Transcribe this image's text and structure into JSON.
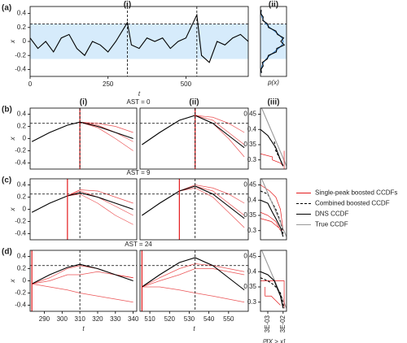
{
  "chart_data": [
    {
      "type": "line",
      "panel_label": "(a)",
      "column_label": "(i)",
      "xlabel": "t",
      "ylabel": "x",
      "xlim": [
        0,
        700
      ],
      "ylim": [
        -0.5,
        0.5
      ],
      "xticks": [
        0,
        250,
        500
      ],
      "yticks": [
        -0.4,
        -0.2,
        0,
        0.2,
        0.4
      ],
      "band": [
        -0.25,
        0.25
      ],
      "threshold": 0.25,
      "band_color": "#d6ebfb",
      "vlines": [
        {
          "value": 312,
          "color": "#000000",
          "dash": true
        },
        {
          "value": 535,
          "color": "#000000",
          "dash": true
        }
      ],
      "x": [
        0,
        25,
        50,
        75,
        100,
        125,
        150,
        175,
        200,
        225,
        250,
        275,
        312,
        325,
        350,
        375,
        400,
        425,
        450,
        475,
        500,
        535,
        550,
        575,
        600,
        625,
        650,
        675,
        700
      ],
      "series": [
        {
          "color": "#000000",
          "values": [
            0.05,
            -0.1,
            0.0,
            -0.15,
            0.05,
            0.1,
            -0.1,
            -0.2,
            0.0,
            -0.05,
            -0.15,
            0.0,
            0.27,
            -0.05,
            -0.1,
            0.05,
            0.0,
            0.05,
            -0.1,
            0.0,
            0.05,
            0.38,
            -0.2,
            -0.3,
            0.0,
            -0.05,
            0.05,
            0.1,
            0.0
          ]
        }
      ]
    },
    {
      "type": "line",
      "column_label": "(ii)",
      "xlabel": "p(x)",
      "xlim": [
        0,
        1.15
      ],
      "ylim": [
        -0.5,
        0.5
      ],
      "band": [
        -0.25,
        0.25
      ],
      "threshold": 0.25,
      "band_color": "#d6ebfb",
      "x": [
        0.011,
        0.03,
        0.066,
        0.135,
        0.25,
        0.41,
        0.61,
        0.8,
        0.95,
        1.0,
        0.95,
        0.8,
        0.61,
        0.41,
        0.25,
        0.135,
        0.066,
        0.03,
        0.011
      ],
      "series": [
        {
          "color": "#3a7fc1",
          "values": [
            -0.45,
            -0.4,
            -0.35,
            -0.3,
            -0.25,
            -0.2,
            -0.15,
            -0.1,
            -0.05,
            0,
            0.05,
            0.1,
            0.15,
            0.2,
            0.25,
            0.3,
            0.35,
            0.4,
            0.45
          ]
        },
        {
          "color": "#000000",
          "x": [
            0.05,
            0.02,
            0.12,
            0.08,
            0.3,
            0.35,
            0.7,
            0.72,
            1.05,
            0.9,
            1.02,
            0.75,
            0.68,
            0.35,
            0.32,
            0.1,
            0.12,
            0.01,
            0.04
          ],
          "values": [
            -0.45,
            -0.4,
            -0.35,
            -0.3,
            -0.25,
            -0.2,
            -0.15,
            -0.1,
            -0.05,
            0,
            0.05,
            0.1,
            0.15,
            0.2,
            0.25,
            0.3,
            0.35,
            0.4,
            0.45
          ]
        }
      ]
    },
    {
      "type": "line",
      "panel_label": "(b)",
      "column_label": "(i)",
      "title": "AST = 0",
      "ylabel": "x",
      "xlim": [
        282,
        342
      ],
      "ylim": [
        -0.5,
        0.5
      ],
      "yticks": [
        -0.4,
        -0.2,
        0,
        0.2,
        0.4
      ],
      "threshold": 0.25,
      "vlines": [
        {
          "value": 310,
          "color": "#e41a1c",
          "dash": false
        },
        {
          "value": 310,
          "color": "#000000",
          "dash": true
        }
      ],
      "x": [
        283,
        293,
        303,
        310,
        320,
        330,
        340
      ],
      "series": [
        {
          "color": "#e41a1c",
          "values": [
            null,
            null,
            null,
            0.27,
            0.22,
            0.1,
            -0.05
          ]
        },
        {
          "color": "#e41a1c",
          "values": [
            null,
            null,
            null,
            0.27,
            0.18,
            0.0,
            -0.2
          ]
        },
        {
          "color": "#e41a1c",
          "values": [
            null,
            null,
            null,
            0.27,
            0.25,
            0.2,
            0.1
          ]
        },
        {
          "color": "#000000",
          "values": [
            -0.05,
            0.1,
            0.22,
            0.27,
            0.2,
            0.1,
            0.0
          ]
        }
      ]
    },
    {
      "type": "line",
      "column_label": "(ii)",
      "xlim": [
        505,
        560
      ],
      "ylim": [
        -0.5,
        0.5
      ],
      "threshold": 0.25,
      "vlines": [
        {
          "value": 533,
          "color": "#e41a1c",
          "dash": false
        },
        {
          "value": 533,
          "color": "#000000",
          "dash": true
        }
      ],
      "x": [
        506,
        515,
        525,
        533,
        542,
        550,
        558
      ],
      "series": [
        {
          "color": "#e41a1c",
          "values": [
            null,
            null,
            null,
            0.38,
            0.3,
            0.1,
            -0.1
          ]
        },
        {
          "color": "#e41a1c",
          "values": [
            null,
            null,
            null,
            0.38,
            0.25,
            0.0,
            -0.3
          ]
        },
        {
          "color": "#e41a1c",
          "values": [
            null,
            null,
            null,
            0.38,
            0.35,
            0.25,
            0.1
          ]
        },
        {
          "color": "#000000",
          "values": [
            -0.1,
            0.1,
            0.3,
            0.38,
            0.25,
            0.05,
            -0.15
          ]
        }
      ]
    },
    {
      "type": "line",
      "column_label": "(iii)",
      "xscale": "log",
      "xlim": [
        0.001,
        0.05
      ],
      "ylim": [
        0.27,
        0.47
      ],
      "yticks": [
        0.3,
        0.35,
        0.4,
        0.45
      ],
      "series": [
        {
          "color": "#999999",
          "x": [
            0.0012,
            0.05
          ],
          "values": [
            0.47,
            0.28
          ]
        },
        {
          "color": "#e41a1c",
          "x": [
            0.001,
            0.006,
            0.006,
            0.02,
            0.03
          ],
          "values": [
            0.32,
            0.31,
            0.3,
            0.29,
            0.28
          ]
        },
        {
          "color": "#e41a1c",
          "x": [
            0.035,
            0.035
          ],
          "values": [
            0.33,
            0.27
          ]
        },
        {
          "color": "#000000",
          "dash": true,
          "x": [
            0.008,
            0.01,
            0.02,
            0.03
          ],
          "values": [
            0.36,
            0.33,
            0.3,
            0.28
          ]
        },
        {
          "color": "#000000",
          "x": [
            0.001,
            0.003,
            0.01,
            0.02,
            0.03
          ],
          "values": [
            0.4,
            0.38,
            0.34,
            0.3,
            0.28
          ]
        }
      ]
    },
    {
      "type": "line",
      "panel_label": "(c)",
      "title": "AST = 9",
      "ylabel": "x",
      "xlim": [
        282,
        342
      ],
      "ylim": [
        -0.5,
        0.5
      ],
      "yticks": [
        -0.4,
        -0.2,
        0,
        0.2,
        0.4
      ],
      "threshold": 0.25,
      "vlines": [
        {
          "value": 303,
          "color": "#e41a1c",
          "dash": false
        },
        {
          "value": 310,
          "color": "#000000",
          "dash": true
        }
      ],
      "x": [
        283,
        293,
        303,
        310,
        320,
        330,
        340
      ],
      "series": [
        {
          "color": "#e41a1c",
          "values": [
            null,
            null,
            0.22,
            0.3,
            0.2,
            0.05,
            -0.1
          ]
        },
        {
          "color": "#e41a1c",
          "values": [
            null,
            null,
            0.22,
            0.25,
            0.1,
            -0.1,
            -0.25
          ]
        },
        {
          "color": "#e41a1c",
          "values": [
            null,
            null,
            0.22,
            0.32,
            0.3,
            0.2,
            0.1
          ]
        },
        {
          "color": "#000000",
          "values": [
            -0.05,
            0.1,
            0.22,
            0.27,
            0.2,
            0.1,
            0.0
          ]
        }
      ]
    },
    {
      "type": "line",
      "xlim": [
        505,
        560
      ],
      "ylim": [
        -0.5,
        0.5
      ],
      "threshold": 0.25,
      "vlines": [
        {
          "value": 525,
          "color": "#e41a1c",
          "dash": false
        },
        {
          "value": 533,
          "color": "#000000",
          "dash": true
        }
      ],
      "x": [
        506,
        515,
        525,
        533,
        542,
        550,
        558
      ],
      "series": [
        {
          "color": "#e41a1c",
          "values": [
            null,
            null,
            0.3,
            0.38,
            0.3,
            0.1,
            -0.1
          ]
        },
        {
          "color": "#e41a1c",
          "values": [
            null,
            null,
            0.3,
            0.35,
            0.2,
            -0.05,
            -0.3
          ]
        },
        {
          "color": "#e41a1c",
          "values": [
            null,
            null,
            0.3,
            0.4,
            0.35,
            0.25,
            0.1
          ]
        },
        {
          "color": "#000000",
          "values": [
            -0.1,
            0.1,
            0.3,
            0.38,
            0.25,
            0.05,
            -0.15
          ]
        }
      ]
    },
    {
      "type": "line",
      "xscale": "log",
      "legend": "right",
      "xlim": [
        0.001,
        0.05
      ],
      "ylim": [
        0.27,
        0.47
      ],
      "yticks": [
        0.3,
        0.35,
        0.4,
        0.45
      ],
      "series": [
        {
          "name": "Single-peak boosted CCDFs",
          "color": "#e41a1c",
          "x": [
            0.001,
            0.004,
            0.01,
            0.02,
            0.03
          ],
          "values": [
            0.45,
            0.43,
            0.41,
            0.37,
            0.3
          ]
        },
        {
          "name": "Combined boosted CCDF",
          "color": "#000000",
          "dash": true,
          "x": [
            0.001,
            0.003,
            0.006,
            0.01,
            0.02,
            0.03
          ],
          "values": [
            0.43,
            0.42,
            0.39,
            0.37,
            0.33,
            0.29
          ]
        },
        {
          "name": "DNS CCDF",
          "color": "#000000",
          "x": [
            0.001,
            0.003,
            0.006,
            0.01,
            0.02,
            0.03
          ],
          "values": [
            0.4,
            0.39,
            0.36,
            0.34,
            0.31,
            0.28
          ]
        },
        {
          "name": "True CCDF",
          "color": "#999999",
          "x": [
            0.0012,
            0.05
          ],
          "values": [
            0.47,
            0.28
          ]
        },
        {
          "color": "#e41a1c",
          "x": [
            0.001,
            0.003,
            0.01,
            0.02
          ],
          "values": [
            0.36,
            0.35,
            0.33,
            0.3
          ]
        },
        {
          "color": "#e41a1c",
          "x": [
            0.001,
            0.005,
            0.015
          ],
          "values": [
            0.34,
            0.33,
            0.31
          ]
        }
      ]
    },
    {
      "type": "line",
      "panel_label": "(d)",
      "title": "AST = 24",
      "ylabel": "x",
      "xlabel": "t",
      "xlim": [
        282,
        342
      ],
      "ylim": [
        -0.5,
        0.5
      ],
      "xticks": [
        290,
        300,
        310,
        320,
        330,
        340
      ],
      "yticks": [
        -0.4,
        -0.2,
        0,
        0.2,
        0.4
      ],
      "threshold": 0.25,
      "vlines": [
        {
          "value": 283,
          "color": "#e41a1c",
          "dash": false
        },
        {
          "value": 310,
          "color": "#000000",
          "dash": true
        }
      ],
      "x": [
        283,
        293,
        303,
        310,
        320,
        330,
        340
      ],
      "series": [
        {
          "color": "#e41a1c",
          "values": [
            -0.05,
            0.0,
            0.1,
            0.1,
            0.15,
            0.1,
            0.05
          ]
        },
        {
          "color": "#e41a1c",
          "values": [
            -0.05,
            -0.1,
            -0.15,
            -0.2,
            -0.25,
            -0.3,
            -0.35
          ]
        },
        {
          "color": "#e41a1c",
          "values": [
            -0.05,
            0.05,
            0.2,
            0.25,
            0.2,
            0.1,
            0.05
          ]
        },
        {
          "color": "#000000",
          "values": [
            -0.05,
            0.1,
            0.22,
            0.27,
            0.2,
            0.1,
            0.0
          ]
        }
      ]
    },
    {
      "type": "line",
      "xlabel": "t",
      "xlim": [
        505,
        560
      ],
      "ylim": [
        -0.5,
        0.5
      ],
      "xticks": [
        510,
        520,
        530,
        540,
        550
      ],
      "threshold": 0.25,
      "vlines": [
        {
          "value": 506,
          "color": "#e41a1c",
          "dash": false
        },
        {
          "value": 533,
          "color": "#000000",
          "dash": true
        }
      ],
      "x": [
        506,
        515,
        525,
        533,
        542,
        550,
        558
      ],
      "series": [
        {
          "color": "#e41a1c",
          "values": [
            -0.1,
            0.0,
            0.1,
            0.2,
            0.2,
            0.15,
            0.1
          ]
        },
        {
          "color": "#e41a1c",
          "values": [
            -0.1,
            -0.1,
            -0.15,
            -0.2,
            -0.25,
            -0.3,
            -0.35
          ]
        },
        {
          "color": "#e41a1c",
          "values": [
            -0.1,
            0.05,
            0.2,
            0.28,
            0.25,
            0.2,
            0.15
          ]
        },
        {
          "color": "#000000",
          "values": [
            -0.1,
            0.1,
            0.3,
            0.38,
            0.25,
            0.05,
            -0.15
          ]
        }
      ]
    },
    {
      "type": "line",
      "xscale": "log",
      "xlabel": "ℙ[X > x]",
      "xlim": [
        0.001,
        0.05
      ],
      "ylim": [
        0.27,
        0.47
      ],
      "yticks": [
        0.3,
        0.35,
        0.4,
        0.45
      ],
      "xticks": [
        {
          "value": 0.003,
          "label": "3E-03"
        },
        {
          "value": 0.03,
          "label": "3E-02"
        }
      ],
      "series": [
        {
          "color": "#999999",
          "x": [
            0.0012,
            0.05
          ],
          "values": [
            0.47,
            0.28
          ]
        },
        {
          "color": "#e41a1c",
          "x": [
            0.001,
            0.003,
            0.01,
            0.035,
            0.035
          ],
          "values": [
            0.37,
            0.37,
            0.37,
            0.37,
            0.28
          ]
        },
        {
          "color": "#e41a1c",
          "x": [
            0.002,
            0.002,
            0.005,
            0.02
          ],
          "values": [
            0.35,
            0.32,
            0.32,
            0.29
          ]
        },
        {
          "color": "#000000",
          "dash": true,
          "x": [
            0.001,
            0.003,
            0.006,
            0.01,
            0.02,
            0.035
          ],
          "values": [
            0.38,
            0.37,
            0.36,
            0.35,
            0.33,
            0.28
          ]
        },
        {
          "color": "#000000",
          "x": [
            0.001,
            0.003,
            0.008,
            0.02,
            0.03
          ],
          "values": [
            0.4,
            0.39,
            0.37,
            0.32,
            0.28
          ]
        }
      ]
    }
  ]
}
